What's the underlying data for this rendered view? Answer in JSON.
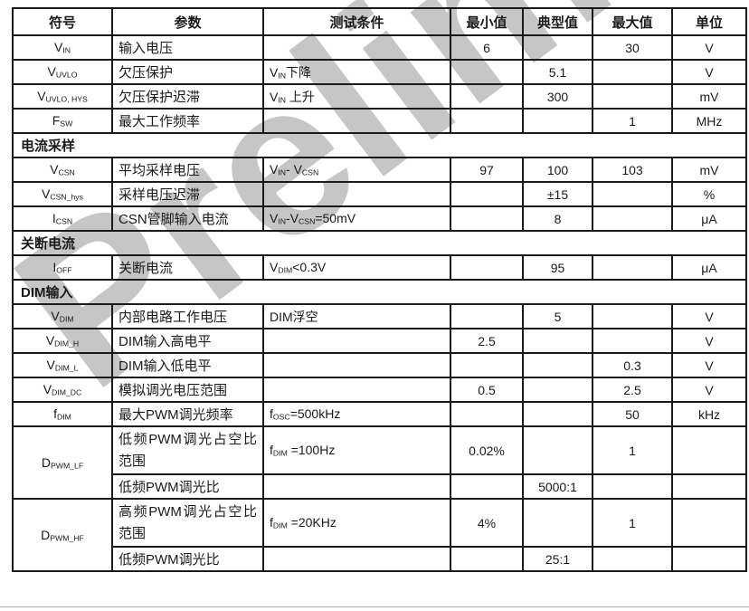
{
  "watermark": {
    "text": "Preliminary",
    "color": "#c6c6c6"
  },
  "footer_rule": {
    "color": "#a8a8a8"
  },
  "table": {
    "border_color": "#1a1a1a",
    "columns": [
      {
        "label": "符号"
      },
      {
        "label": "参数"
      },
      {
        "label": "测试条件"
      },
      {
        "label": "最小值"
      },
      {
        "label": "典型值"
      },
      {
        "label": "最大值"
      },
      {
        "label": "单位"
      }
    ],
    "rows": [
      {
        "type": "data",
        "symbol": [
          "V",
          {
            "s": "IN"
          }
        ],
        "param": "输入电压",
        "cond": [],
        "min": "6",
        "typ": "",
        "max": "30",
        "unit": "V"
      },
      {
        "type": "data",
        "symbol": [
          "V",
          {
            "s": "UVLO"
          }
        ],
        "param": "欠压保护",
        "cond": [
          "V",
          {
            "s": "IN"
          },
          "下降"
        ],
        "min": "",
        "typ": "5.1",
        "max": "",
        "unit": "V"
      },
      {
        "type": "data",
        "symbol": [
          "V",
          {
            "s": "UVLO, HYS"
          }
        ],
        "param": "欠压保护迟滞",
        "cond": [
          "V",
          {
            "s": "IN"
          },
          " 上升"
        ],
        "min": "",
        "typ": "300",
        "max": "",
        "unit": "mV"
      },
      {
        "type": "data",
        "symbol": [
          "F",
          {
            "s": "SW"
          }
        ],
        "param": "最大工作频率",
        "cond": [],
        "min": "",
        "typ": "",
        "max": "1",
        "unit": "MHz"
      },
      {
        "type": "section",
        "label": "电流采样"
      },
      {
        "type": "data",
        "symbol": [
          "V",
          {
            "s": "CSN"
          }
        ],
        "param": "平均采样电压",
        "cond": [
          "V",
          {
            "s": "IN"
          },
          "- V",
          {
            "s": "CSN"
          }
        ],
        "min": "97",
        "typ": "100",
        "max": "103",
        "unit": "mV"
      },
      {
        "type": "data",
        "symbol": [
          "V",
          {
            "s": "CSN_hys"
          }
        ],
        "param": "采样电压迟滞",
        "cond": [],
        "min": "",
        "typ": "±15",
        "max": "",
        "unit": "%"
      },
      {
        "type": "data",
        "symbol": [
          "I",
          {
            "s": "CSN"
          }
        ],
        "param": "CSN管脚输入电流",
        "cond": [
          "V",
          {
            "s": "IN"
          },
          "-V",
          {
            "s": "CSN"
          },
          "=50mV"
        ],
        "min": "",
        "typ": "8",
        "max": "",
        "unit": "μA"
      },
      {
        "type": "section",
        "label": "关断电流"
      },
      {
        "type": "data",
        "symbol": [
          "I",
          {
            "s": "OFF"
          }
        ],
        "param": "关断电流",
        "cond": [
          "V",
          {
            "s": "DIM"
          },
          "<0.3V"
        ],
        "min": "",
        "typ": "95",
        "max": "",
        "unit": "μA"
      },
      {
        "type": "section",
        "label": "DIM输入"
      },
      {
        "type": "data",
        "symbol": [
          "V",
          {
            "s": "DIM"
          }
        ],
        "param": "内部电路工作电压",
        "cond": [
          "DIM浮空"
        ],
        "min": "",
        "typ": "5",
        "max": "",
        "unit": "V"
      },
      {
        "type": "data",
        "symbol": [
          "V",
          {
            "s": "DIM_H"
          }
        ],
        "param": "DIM输入高电平",
        "cond": [],
        "min": "2.5",
        "typ": "",
        "max": "",
        "unit": "V"
      },
      {
        "type": "data",
        "symbol": [
          "V",
          {
            "s": "DIM_L"
          }
        ],
        "param": "DIM输入低电平",
        "cond": [],
        "min": "",
        "typ": "",
        "max": "0.3",
        "unit": "V"
      },
      {
        "type": "data",
        "symbol": [
          "V",
          {
            "s": "DIM_DC"
          }
        ],
        "param": "模拟调光电压范围",
        "cond": [],
        "min": "0.5",
        "typ": "",
        "max": "2.5",
        "unit": "V"
      },
      {
        "type": "data",
        "symbol": [
          "f",
          {
            "s": "DIM"
          }
        ],
        "param": "最大PWM调光频率",
        "cond": [
          "f",
          {
            "s": "OSC"
          },
          "=500kHz"
        ],
        "min": "",
        "typ": "",
        "max": "50",
        "unit": "kHz"
      },
      {
        "type": "data",
        "tall": true,
        "symbol_rowspan": 2,
        "symbol": [
          "D",
          {
            "s": "PWM_LF"
          }
        ],
        "param": "低频PWM调光占空比范围",
        "cond": [
          "f",
          {
            "s": "DIM"
          },
          " =100Hz"
        ],
        "min": "0.02%",
        "typ": "",
        "max": "1",
        "unit": ""
      },
      {
        "type": "data",
        "skip_symbol": true,
        "param": "低频PWM调光比",
        "cond": [],
        "min": "",
        "typ": "5000:1",
        "max": "",
        "unit": ""
      },
      {
        "type": "data",
        "tall": true,
        "symbol_rowspan": 2,
        "symbol": [
          "D",
          {
            "s": "PWM_HF"
          }
        ],
        "param": "高频PWM调光占空比范围",
        "cond": [
          "f",
          {
            "s": "DIM"
          },
          " =20KHz"
        ],
        "min": "4%",
        "typ": "",
        "max": "1",
        "unit": ""
      },
      {
        "type": "data",
        "skip_symbol": true,
        "param": "低频PWM调光比",
        "cond": [],
        "min": "",
        "typ": "25:1",
        "max": "",
        "unit": ""
      }
    ]
  }
}
